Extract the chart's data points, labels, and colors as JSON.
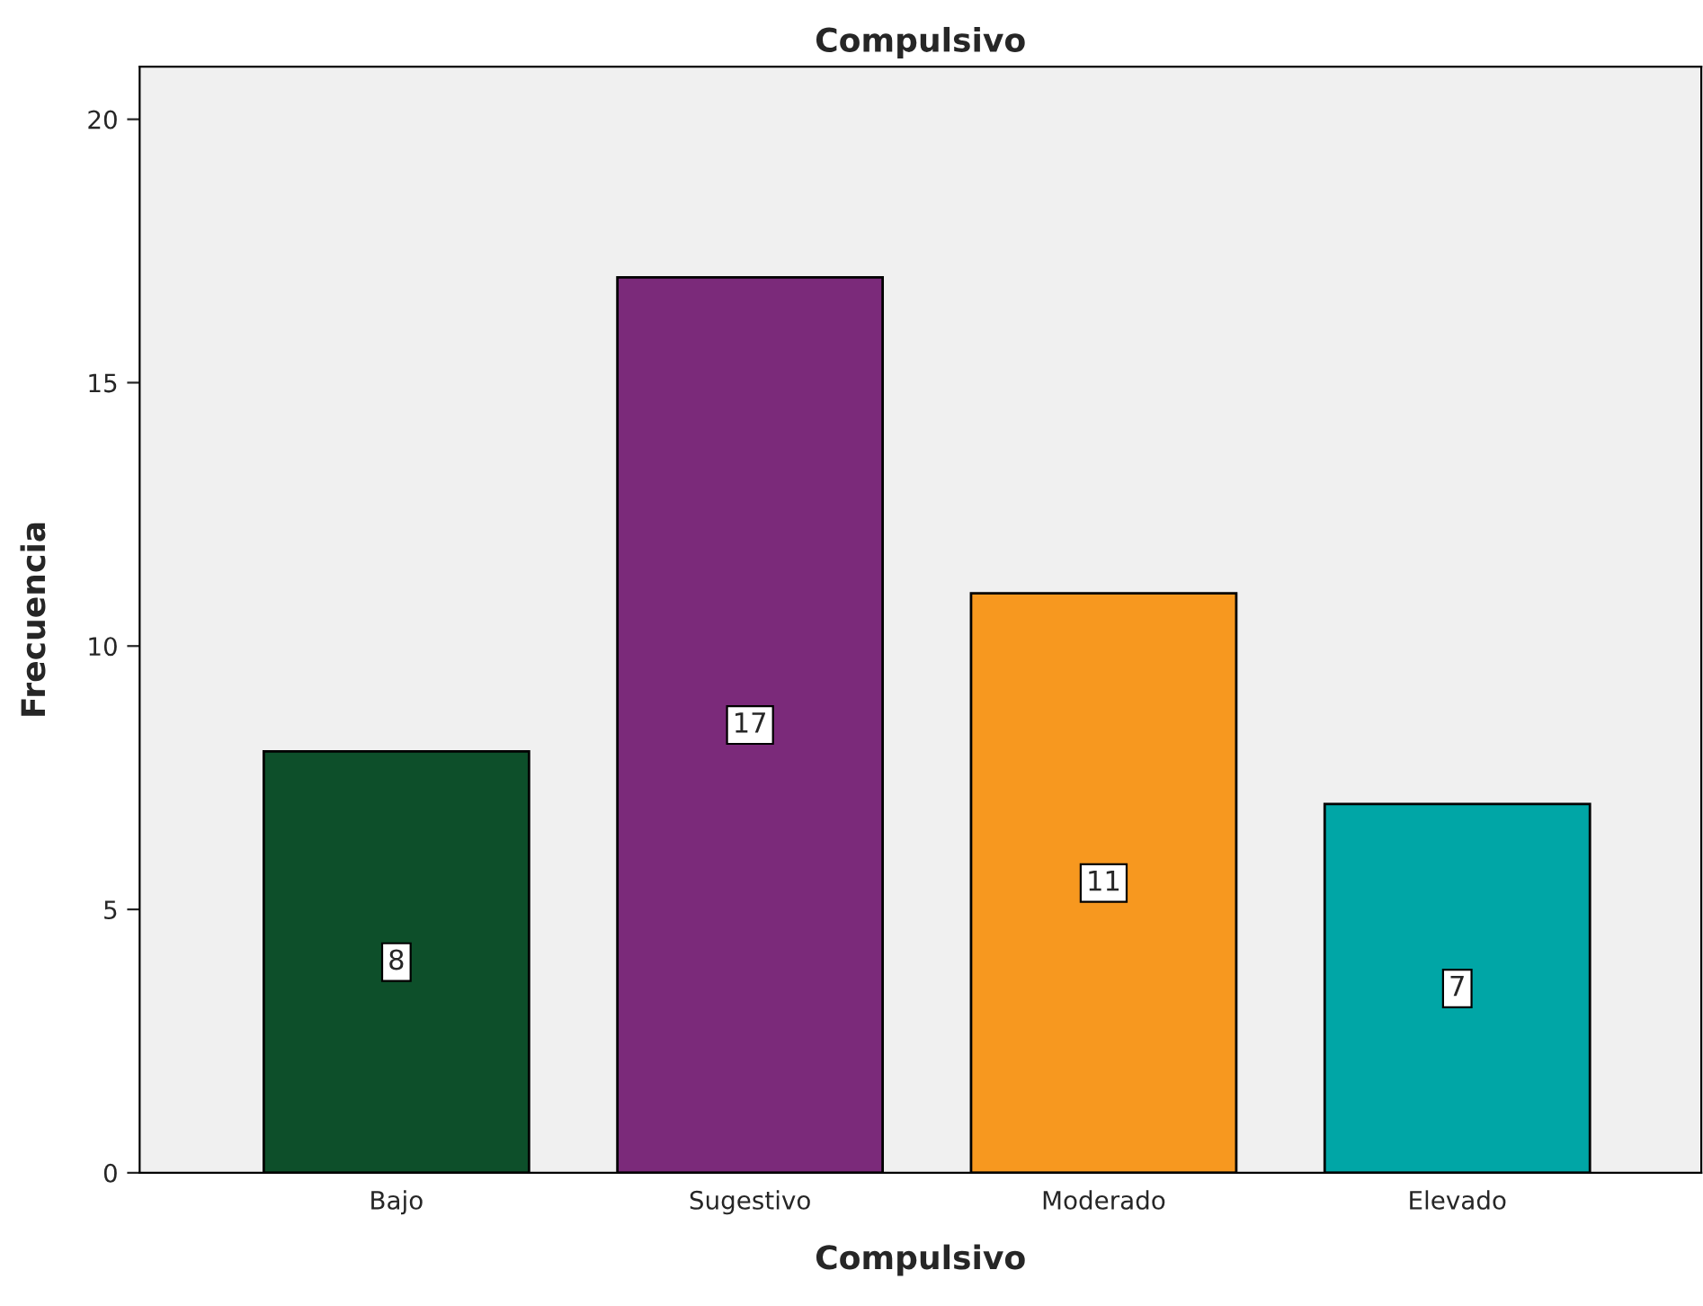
{
  "chart_data": {
    "type": "bar",
    "title": "Compulsivo",
    "xlabel": "Compulsivo",
    "ylabel": "Frecuencia",
    "categories": [
      "Bajo",
      "Sugestivo",
      "Moderado",
      "Elevado"
    ],
    "values": [
      8,
      17,
      11,
      7
    ],
    "colors": [
      "#0d4f2a",
      "#7b2a7a",
      "#f7981f",
      "#00a6a6"
    ],
    "ylim": [
      0,
      21
    ],
    "yticks": [
      0,
      5,
      10,
      15,
      20
    ],
    "data_labels": true,
    "grid": false,
    "legend": false
  }
}
